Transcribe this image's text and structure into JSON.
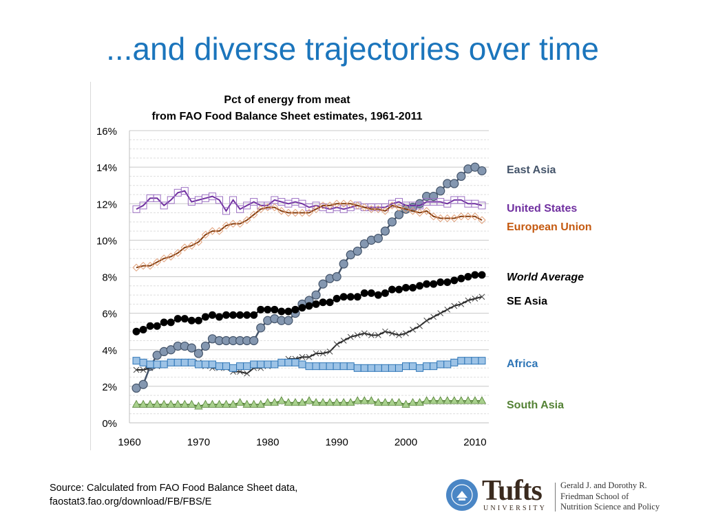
{
  "slide": {
    "title": "...and diverse trajectories over time",
    "source_line1": "Source: Calculated from FAO Food Balance Sheet data,",
    "source_line2": "faostat3.fao.org/download/FB/FBS/E"
  },
  "logo": {
    "wordmark": "Tufts",
    "university": "UNIVERSITY",
    "school_line1": "Gerald J. and Dorothy R.",
    "school_line2": "Friedman School of",
    "school_line3": "Nutrition Science and Policy"
  },
  "chart_data": {
    "type": "line",
    "title_line1": "Pct of energy from meat",
    "title_line2": "from FAO Food Balance Sheet estimates, 1961-2011",
    "xlabel": "",
    "ylabel": "",
    "xlim": [
      1960,
      2012
    ],
    "ylim": [
      0,
      16
    ],
    "x_ticks": [
      1960,
      1970,
      1980,
      1990,
      2000,
      2010
    ],
    "y_ticks": [
      0,
      2,
      4,
      6,
      8,
      10,
      12,
      14,
      16
    ],
    "y_tick_labels": [
      "0%",
      "2%",
      "4%",
      "6%",
      "8%",
      "10%",
      "12%",
      "14%",
      "16%"
    ],
    "grid": true,
    "x": [
      1961,
      1962,
      1963,
      1964,
      1965,
      1966,
      1967,
      1968,
      1969,
      1970,
      1971,
      1972,
      1973,
      1974,
      1975,
      1976,
      1977,
      1978,
      1979,
      1980,
      1981,
      1982,
      1983,
      1984,
      1985,
      1986,
      1987,
      1988,
      1989,
      1990,
      1991,
      1992,
      1993,
      1994,
      1995,
      1996,
      1997,
      1998,
      1999,
      2000,
      2001,
      2002,
      2003,
      2004,
      2005,
      2006,
      2007,
      2008,
      2009,
      2010,
      2011
    ],
    "series": [
      {
        "name": "East Asia",
        "label_color": "#44546a",
        "bold_italic": false,
        "color": "#44546a",
        "fill": "#8497b0",
        "marker": "circle-big",
        "values": [
          1.9,
          2.1,
          3.1,
          3.7,
          3.9,
          4.0,
          4.2,
          4.2,
          4.1,
          3.8,
          4.2,
          4.6,
          4.5,
          4.5,
          4.5,
          4.5,
          4.5,
          4.5,
          5.2,
          5.6,
          5.7,
          5.6,
          5.6,
          6.0,
          6.5,
          6.7,
          7.0,
          7.6,
          7.9,
          8.0,
          8.7,
          9.2,
          9.4,
          9.8,
          10.0,
          10.1,
          10.5,
          11.0,
          11.4,
          11.7,
          11.8,
          12.0,
          12.4,
          12.4,
          12.7,
          13.1,
          13.1,
          13.5,
          13.9,
          14.0,
          13.8
        ]
      },
      {
        "name": "United States",
        "label_color": "#7030a0",
        "bold_italic": false,
        "color": "#7030a0",
        "fill": "none",
        "marker": "square-open",
        "values": [
          11.7,
          11.9,
          12.3,
          12.3,
          11.9,
          12.2,
          12.6,
          12.7,
          12.1,
          12.2,
          12.3,
          12.4,
          12.2,
          11.6,
          12.2,
          11.7,
          11.9,
          12.1,
          11.9,
          11.9,
          12.2,
          12.1,
          12.0,
          12.1,
          12.0,
          11.8,
          11.9,
          11.8,
          11.7,
          11.8,
          11.7,
          11.8,
          11.9,
          11.8,
          11.8,
          11.8,
          11.8,
          12.0,
          12.1,
          11.9,
          11.9,
          11.9,
          12.1,
          12.1,
          12.1,
          12.0,
          12.2,
          12.2,
          12.0,
          12.0,
          11.9
        ]
      },
      {
        "name": "European Union",
        "label_color": "#c55a11",
        "bold_italic": false,
        "color": "#843c0c",
        "fill": "none",
        "marker": "diamond-open",
        "values": [
          8.5,
          8.6,
          8.6,
          8.8,
          9.0,
          9.1,
          9.3,
          9.6,
          9.7,
          9.9,
          10.3,
          10.5,
          10.5,
          10.8,
          10.9,
          10.9,
          11.1,
          11.4,
          11.7,
          11.8,
          11.8,
          11.6,
          11.5,
          11.5,
          11.5,
          11.5,
          11.7,
          11.9,
          11.9,
          12.0,
          12.0,
          12.0,
          11.9,
          11.8,
          11.7,
          11.7,
          11.6,
          11.9,
          11.8,
          11.7,
          11.6,
          11.5,
          11.6,
          11.3,
          11.2,
          11.2,
          11.2,
          11.3,
          11.3,
          11.3,
          11.1
        ]
      },
      {
        "name": "World Average",
        "label_color": "#000000",
        "bold_italic": true,
        "color": "#000000",
        "fill": "#000000",
        "marker": "circle-solid",
        "values": [
          5.0,
          5.1,
          5.3,
          5.3,
          5.5,
          5.5,
          5.7,
          5.7,
          5.6,
          5.6,
          5.8,
          5.9,
          5.8,
          5.9,
          5.9,
          5.9,
          5.9,
          5.9,
          6.2,
          6.2,
          6.2,
          6.1,
          6.1,
          6.2,
          6.3,
          6.4,
          6.5,
          6.6,
          6.6,
          6.8,
          6.9,
          6.9,
          6.9,
          7.1,
          7.1,
          7.0,
          7.1,
          7.3,
          7.3,
          7.4,
          7.4,
          7.5,
          7.6,
          7.6,
          7.7,
          7.7,
          7.8,
          7.9,
          8.0,
          8.1,
          8.1
        ]
      },
      {
        "name": "SE Asia",
        "label_color": "#000000",
        "bold_italic": false,
        "color": "#222222",
        "fill": "none",
        "marker": "x",
        "values": [
          2.9,
          2.9,
          3.0,
          3.1,
          3.2,
          3.3,
          3.3,
          3.3,
          3.3,
          3.3,
          3.1,
          3.0,
          3.0,
          3.0,
          2.8,
          2.8,
          2.7,
          3.0,
          3.0,
          3.1,
          3.2,
          3.3,
          3.5,
          3.5,
          3.6,
          3.6,
          3.8,
          3.8,
          3.9,
          4.3,
          4.5,
          4.7,
          4.8,
          4.9,
          4.8,
          4.8,
          5.0,
          4.9,
          4.8,
          4.9,
          5.1,
          5.3,
          5.6,
          5.8,
          6.0,
          6.2,
          6.4,
          6.5,
          6.7,
          6.8,
          6.9
        ]
      },
      {
        "name": "Africa",
        "label_color": "#2e75b6",
        "bold_italic": false,
        "color": "#2e75b6",
        "fill": "#9dc3e6",
        "marker": "square-solid",
        "values": [
          3.4,
          3.3,
          3.2,
          3.2,
          3.2,
          3.3,
          3.3,
          3.3,
          3.3,
          3.2,
          3.2,
          3.2,
          3.1,
          3.1,
          3.0,
          3.1,
          3.1,
          3.2,
          3.2,
          3.2,
          3.2,
          3.3,
          3.3,
          3.3,
          3.2,
          3.1,
          3.1,
          3.1,
          3.1,
          3.1,
          3.1,
          3.1,
          3.0,
          3.0,
          3.0,
          3.0,
          3.0,
          3.0,
          3.0,
          3.1,
          3.1,
          3.0,
          3.1,
          3.1,
          3.2,
          3.2,
          3.3,
          3.4,
          3.4,
          3.4,
          3.4
        ]
      },
      {
        "name": "South Asia",
        "label_color": "#548235",
        "bold_italic": false,
        "color": "#548235",
        "fill": "#a9d18e",
        "marker": "triangle",
        "values": [
          1.0,
          1.0,
          1.0,
          1.0,
          1.0,
          1.0,
          1.0,
          1.0,
          1.0,
          0.9,
          1.0,
          1.0,
          1.0,
          1.0,
          1.0,
          1.1,
          1.0,
          1.0,
          1.0,
          1.1,
          1.1,
          1.2,
          1.1,
          1.1,
          1.1,
          1.2,
          1.1,
          1.1,
          1.1,
          1.1,
          1.1,
          1.1,
          1.2,
          1.2,
          1.2,
          1.1,
          1.1,
          1.1,
          1.1,
          1.0,
          1.1,
          1.1,
          1.2,
          1.2,
          1.2,
          1.2,
          1.2,
          1.2,
          1.2,
          1.2,
          1.2
        ]
      }
    ]
  }
}
